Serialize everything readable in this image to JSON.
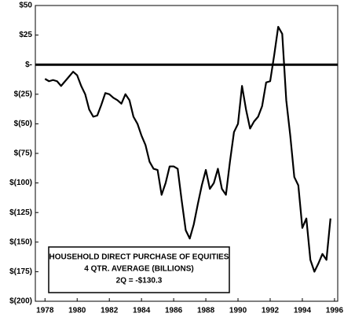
{
  "chart_data": {
    "type": "line",
    "annotation": [
      "HOUSEHOLD DIRECT PURCHASE OF EQUITIES",
      "4 QTR. AVERAGE (BILLIONS)",
      "2Q = -$130.3"
    ],
    "x": [
      1978.0,
      1978.25,
      1978.5,
      1978.75,
      1979.0,
      1979.25,
      1979.5,
      1979.75,
      1980.0,
      1980.25,
      1980.5,
      1980.75,
      1981.0,
      1981.25,
      1981.5,
      1981.75,
      1982.0,
      1982.25,
      1982.5,
      1982.75,
      1983.0,
      1983.25,
      1983.5,
      1983.75,
      1984.0,
      1984.25,
      1984.5,
      1984.75,
      1985.0,
      1985.25,
      1985.5,
      1985.75,
      1986.0,
      1986.25,
      1986.5,
      1986.75,
      1987.0,
      1987.25,
      1987.5,
      1987.75,
      1988.0,
      1988.25,
      1988.5,
      1988.75,
      1989.0,
      1989.25,
      1989.5,
      1989.75,
      1990.0,
      1990.25,
      1990.5,
      1990.75,
      1991.0,
      1991.25,
      1991.5,
      1991.75,
      1992.0,
      1992.25,
      1992.5,
      1992.75,
      1993.0,
      1993.25,
      1993.5,
      1993.75,
      1994.0,
      1994.25,
      1994.5,
      1994.75,
      1995.0,
      1995.25,
      1995.5,
      1995.75
    ],
    "series": [
      {
        "color": "#000000",
        "values": [
          -12,
          -14,
          -13,
          -14,
          -18,
          -14,
          -10,
          -6,
          -9,
          -18,
          -25,
          -38,
          -44,
          -43,
          -34,
          -24,
          -25,
          -28,
          -30,
          -33,
          -25,
          -30,
          -44,
          -50,
          -60,
          -68,
          -82,
          -88,
          -89,
          -110,
          -100,
          -86,
          -86,
          -88,
          -115,
          -140,
          -147,
          -135,
          -118,
          -102,
          -89,
          -105,
          -100,
          -88,
          -105,
          -110,
          -82,
          -57,
          -50,
          -18,
          -38,
          -54,
          -48,
          -44,
          -35,
          -15,
          -14,
          8,
          32,
          26,
          -30,
          -60,
          -95,
          -102,
          -138,
          -130,
          -165,
          -175,
          -168,
          -160,
          -165,
          -130
        ]
      }
    ],
    "xlim": [
      1977.4,
      1996.2
    ],
    "xticks": [
      1978,
      1980,
      1982,
      1984,
      1986,
      1988,
      1990,
      1992,
      1994,
      1996
    ],
    "ylim": [
      -200,
      50
    ],
    "yticks": [
      {
        "value": 50,
        "label": "$50"
      },
      {
        "value": 25,
        "label": "$25"
      },
      {
        "value": 0,
        "label": "$-"
      },
      {
        "value": -25,
        "label": "$(25)"
      },
      {
        "value": -50,
        "label": "$(50)"
      },
      {
        "value": -75,
        "label": "$(75)"
      },
      {
        "value": -100,
        "label": "$(100)"
      },
      {
        "value": -125,
        "label": "$(125)"
      },
      {
        "value": -150,
        "label": "$(150)"
      },
      {
        "value": -175,
        "label": "$(175)"
      },
      {
        "value": -200,
        "label": "$(200)"
      }
    ],
    "grid": false
  }
}
